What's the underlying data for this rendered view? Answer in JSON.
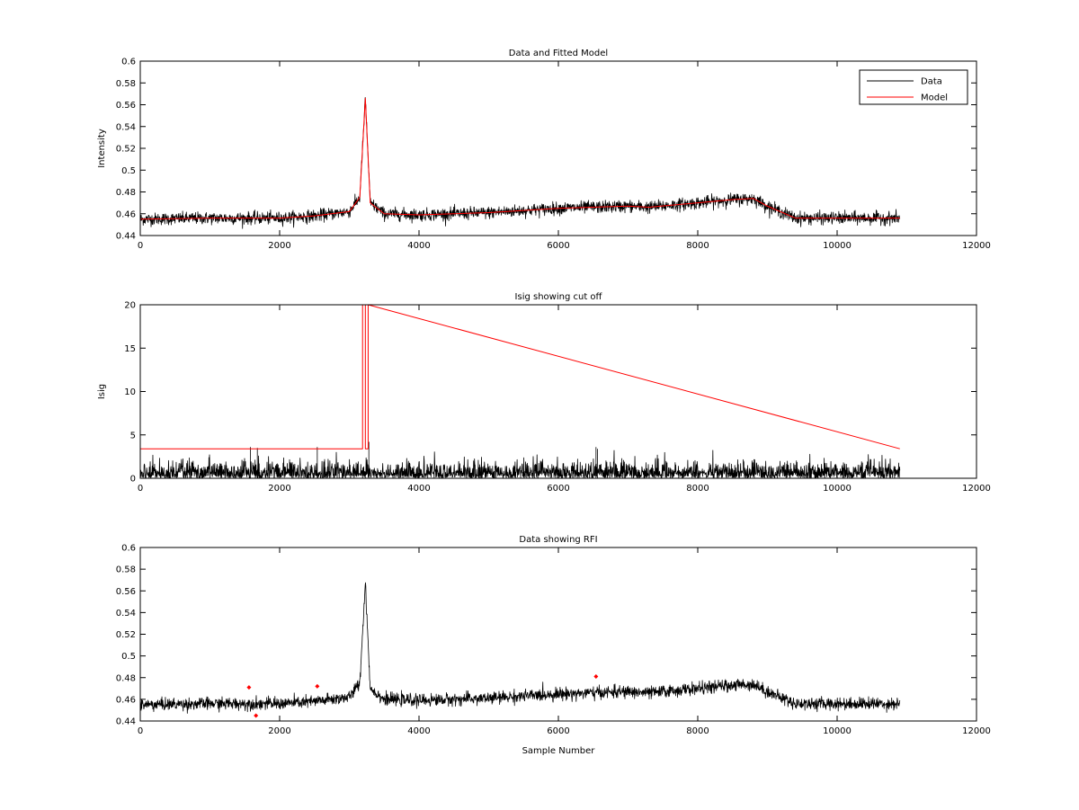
{
  "chart_data": [
    {
      "type": "line",
      "title": "Data and Fitted Model",
      "xlabel": "",
      "ylabel": "Intensity",
      "xlim": [
        0,
        12000
      ],
      "ylim": [
        0.44,
        0.6
      ],
      "xticks": [
        0,
        2000,
        4000,
        6000,
        8000,
        10000,
        12000
      ],
      "xtick_labels": [
        "0",
        "2000",
        "4000",
        "6000",
        "8000",
        "10000",
        "12000"
      ],
      "yticks": [
        0.44,
        0.46,
        0.48,
        0.5,
        0.52,
        0.54,
        0.56,
        0.58,
        0.6
      ],
      "ytick_labels": [
        "0.44",
        "0.46",
        "0.48",
        "0.5",
        "0.52",
        "0.54",
        "0.56",
        "0.58",
        "0.6"
      ],
      "legend": {
        "placement": "top-right",
        "entries": [
          {
            "label": "Data",
            "color": "#000000"
          },
          {
            "label": "Model",
            "color": "#ff0000"
          }
        ]
      },
      "series": [
        {
          "name": "Data",
          "color": "#000000",
          "x_range": [
            0,
            10900
          ],
          "noise": 0.005,
          "x": [
            0,
            1000,
            2000,
            2500,
            3000,
            3150,
            3230,
            3300,
            3500,
            4000,
            5000,
            6000,
            7000,
            7300,
            8000,
            8500,
            8800,
            9000,
            9400,
            10900
          ],
          "y": [
            0.455,
            0.456,
            0.456,
            0.458,
            0.462,
            0.475,
            0.566,
            0.47,
            0.46,
            0.459,
            0.461,
            0.465,
            0.467,
            0.466,
            0.47,
            0.473,
            0.474,
            0.467,
            0.456,
            0.456
          ]
        },
        {
          "name": "Model",
          "color": "#ff0000",
          "x": [
            0,
            1000,
            2000,
            2500,
            3000,
            3150,
            3230,
            3300,
            3500,
            4000,
            5000,
            6000,
            7000,
            7300,
            8000,
            8500,
            8800,
            9000,
            9400,
            10900
          ],
          "y": [
            0.455,
            0.456,
            0.456,
            0.458,
            0.462,
            0.475,
            0.566,
            0.47,
            0.46,
            0.459,
            0.461,
            0.465,
            0.467,
            0.466,
            0.47,
            0.473,
            0.474,
            0.467,
            0.456,
            0.456
          ]
        }
      ]
    },
    {
      "type": "line",
      "title": "Isig showing cut off",
      "xlabel": "",
      "ylabel": "Isig",
      "xlim": [
        0,
        12000
      ],
      "ylim": [
        0,
        20
      ],
      "xticks": [
        0,
        2000,
        4000,
        6000,
        8000,
        10000,
        12000
      ],
      "xtick_labels": [
        "0",
        "2000",
        "4000",
        "6000",
        "8000",
        "10000",
        "12000"
      ],
      "yticks": [
        0,
        5,
        10,
        15,
        20
      ],
      "ytick_labels": [
        "0",
        "5",
        "10",
        "15",
        "20"
      ],
      "series": [
        {
          "name": "",
          "color": "#000000",
          "x_range": [
            0,
            10900
          ],
          "typical_max": 2.0,
          "spikes": [
            [
              1580,
              3.6
            ],
            [
              1680,
              3.5
            ],
            [
              2540,
              3.6
            ],
            [
              3280,
              4.2
            ],
            [
              6540,
              3.6
            ],
            [
              6560,
              3.4
            ]
          ]
        },
        {
          "name": "",
          "color": "#ff0000",
          "x": [
            0,
            3190,
            3190,
            3230,
            3230,
            3270,
            3270,
            10900
          ],
          "y": [
            3.4,
            3.4,
            20,
            20,
            3.4,
            3.4,
            20,
            3.4
          ]
        }
      ]
    },
    {
      "type": "line",
      "title": "Data showing RFI",
      "xlabel": "Sample Number",
      "ylabel": "",
      "xlim": [
        0,
        12000
      ],
      "ylim": [
        0.44,
        0.6
      ],
      "xticks": [
        0,
        2000,
        4000,
        6000,
        8000,
        10000,
        12000
      ],
      "xtick_labels": [
        "0",
        "2000",
        "4000",
        "6000",
        "8000",
        "10000",
        "12000"
      ],
      "yticks": [
        0.44,
        0.46,
        0.48,
        0.5,
        0.52,
        0.54,
        0.56,
        0.58,
        0.6
      ],
      "ytick_labels": [
        "0.44",
        "0.46",
        "0.48",
        "0.5",
        "0.52",
        "0.54",
        "0.56",
        "0.58",
        "0.6"
      ],
      "series": [
        {
          "name": "",
          "color": "#000000",
          "x_range": [
            0,
            10900
          ],
          "noise": 0.005,
          "x": [
            0,
            1000,
            2000,
            2500,
            3000,
            3150,
            3230,
            3300,
            3500,
            4000,
            5000,
            6000,
            7000,
            7300,
            8000,
            8500,
            8800,
            9000,
            9400,
            10900
          ],
          "y": [
            0.455,
            0.456,
            0.456,
            0.458,
            0.462,
            0.475,
            0.568,
            0.47,
            0.46,
            0.459,
            0.461,
            0.465,
            0.467,
            0.466,
            0.47,
            0.473,
            0.474,
            0.467,
            0.456,
            0.456
          ]
        },
        {
          "name": "",
          "type": "scatter",
          "color": "#ff0000",
          "x": [
            1560,
            1660,
            2540,
            6540
          ],
          "y": [
            0.471,
            0.445,
            0.472,
            0.481
          ]
        }
      ]
    }
  ]
}
